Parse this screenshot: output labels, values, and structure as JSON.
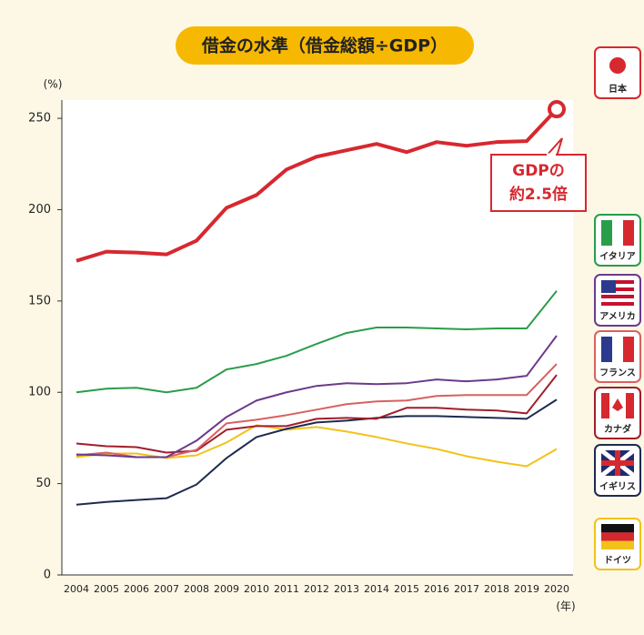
{
  "chart_data": {
    "type": "line",
    "title": "借金の水準（借金総額÷GDP）",
    "y_label": "(%)",
    "x_label": "(年)",
    "annotation": [
      "GDPの",
      "約2.5倍"
    ],
    "categories": [
      "2004",
      "2005",
      "2006",
      "2007",
      "2008",
      "2009",
      "2010",
      "2011",
      "2012",
      "2013",
      "2014",
      "2015",
      "2016",
      "2017",
      "2018",
      "2019",
      "2020"
    ],
    "ylim": [
      0,
      260
    ],
    "yticks": [
      0,
      50,
      100,
      150,
      200,
      250
    ],
    "grid": false,
    "legend": "right",
    "series": [
      {
        "name": "日本",
        "color": "#d7282f",
        "values": [
          172,
          177,
          176.5,
          175.5,
          183,
          201,
          208,
          222,
          229,
          232.5,
          236,
          231.5,
          237,
          235,
          237,
          237.5,
          255
        ]
      },
      {
        "name": "イタリア",
        "color": "#2a9d4a",
        "values": [
          100,
          102,
          102.5,
          100,
          102.5,
          112.5,
          115.5,
          120,
          126.5,
          132.5,
          135.5,
          135.5,
          135,
          134.5,
          135,
          135,
          155.5
        ]
      },
      {
        "name": "アメリカ",
        "color": "#6b3a8c",
        "values": [
          66,
          65.5,
          64.5,
          64.5,
          73.5,
          86.5,
          95.5,
          100,
          103.5,
          105,
          104.5,
          105,
          107,
          106,
          107,
          109,
          131
        ]
      },
      {
        "name": "フランス",
        "color": "#d96060",
        "values": [
          65.5,
          67,
          64.5,
          64.5,
          68.5,
          83,
          85,
          87.5,
          90.5,
          93.5,
          95,
          95.5,
          98,
          98.5,
          98.5,
          98.5,
          115.5
        ]
      },
      {
        "name": "カナダ",
        "color": "#a11e2b",
        "values": [
          72,
          70.5,
          70,
          67,
          68,
          79.5,
          81.5,
          81.5,
          85.5,
          86,
          85.5,
          91.5,
          91.5,
          90.5,
          90,
          88.5,
          109.5
        ]
      },
      {
        "name": "イギリス",
        "color": "#1d2b4f",
        "values": [
          38.5,
          40,
          41,
          42,
          49.5,
          64,
          75.5,
          80,
          83.5,
          84.5,
          86,
          87,
          87,
          86.5,
          86,
          85.5,
          96
        ]
      },
      {
        "name": "ドイツ",
        "color": "#f2c21b",
        "values": [
          64.5,
          66.5,
          66.5,
          64,
          65.5,
          72.5,
          82,
          79.5,
          81,
          78.5,
          75.5,
          72,
          69,
          65,
          62,
          59.5,
          69
        ]
      }
    ]
  }
}
